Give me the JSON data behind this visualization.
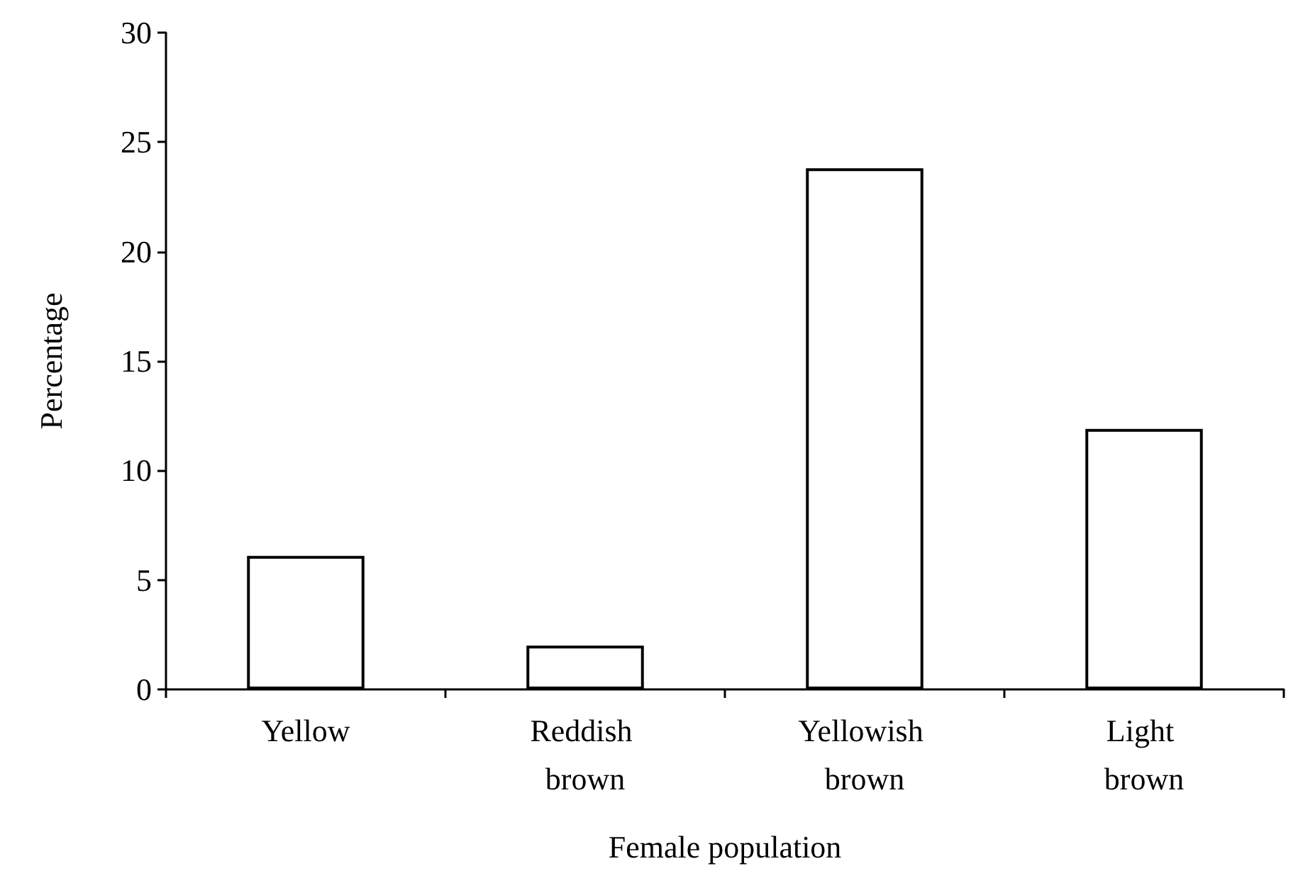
{
  "chart_data": {
    "type": "bar",
    "categories": [
      "Yellow",
      "Reddish brown",
      "Yellowish brown",
      "Light brown"
    ],
    "values": [
      6.1,
      2,
      23.8,
      11.9
    ],
    "color": "#ffffff",
    "xlabel": "Female population",
    "ylabel": "Percentage",
    "ylim": [
      0,
      30
    ],
    "yticks": [
      0,
      5,
      10,
      15,
      20,
      25,
      30
    ],
    "grid": false
  }
}
